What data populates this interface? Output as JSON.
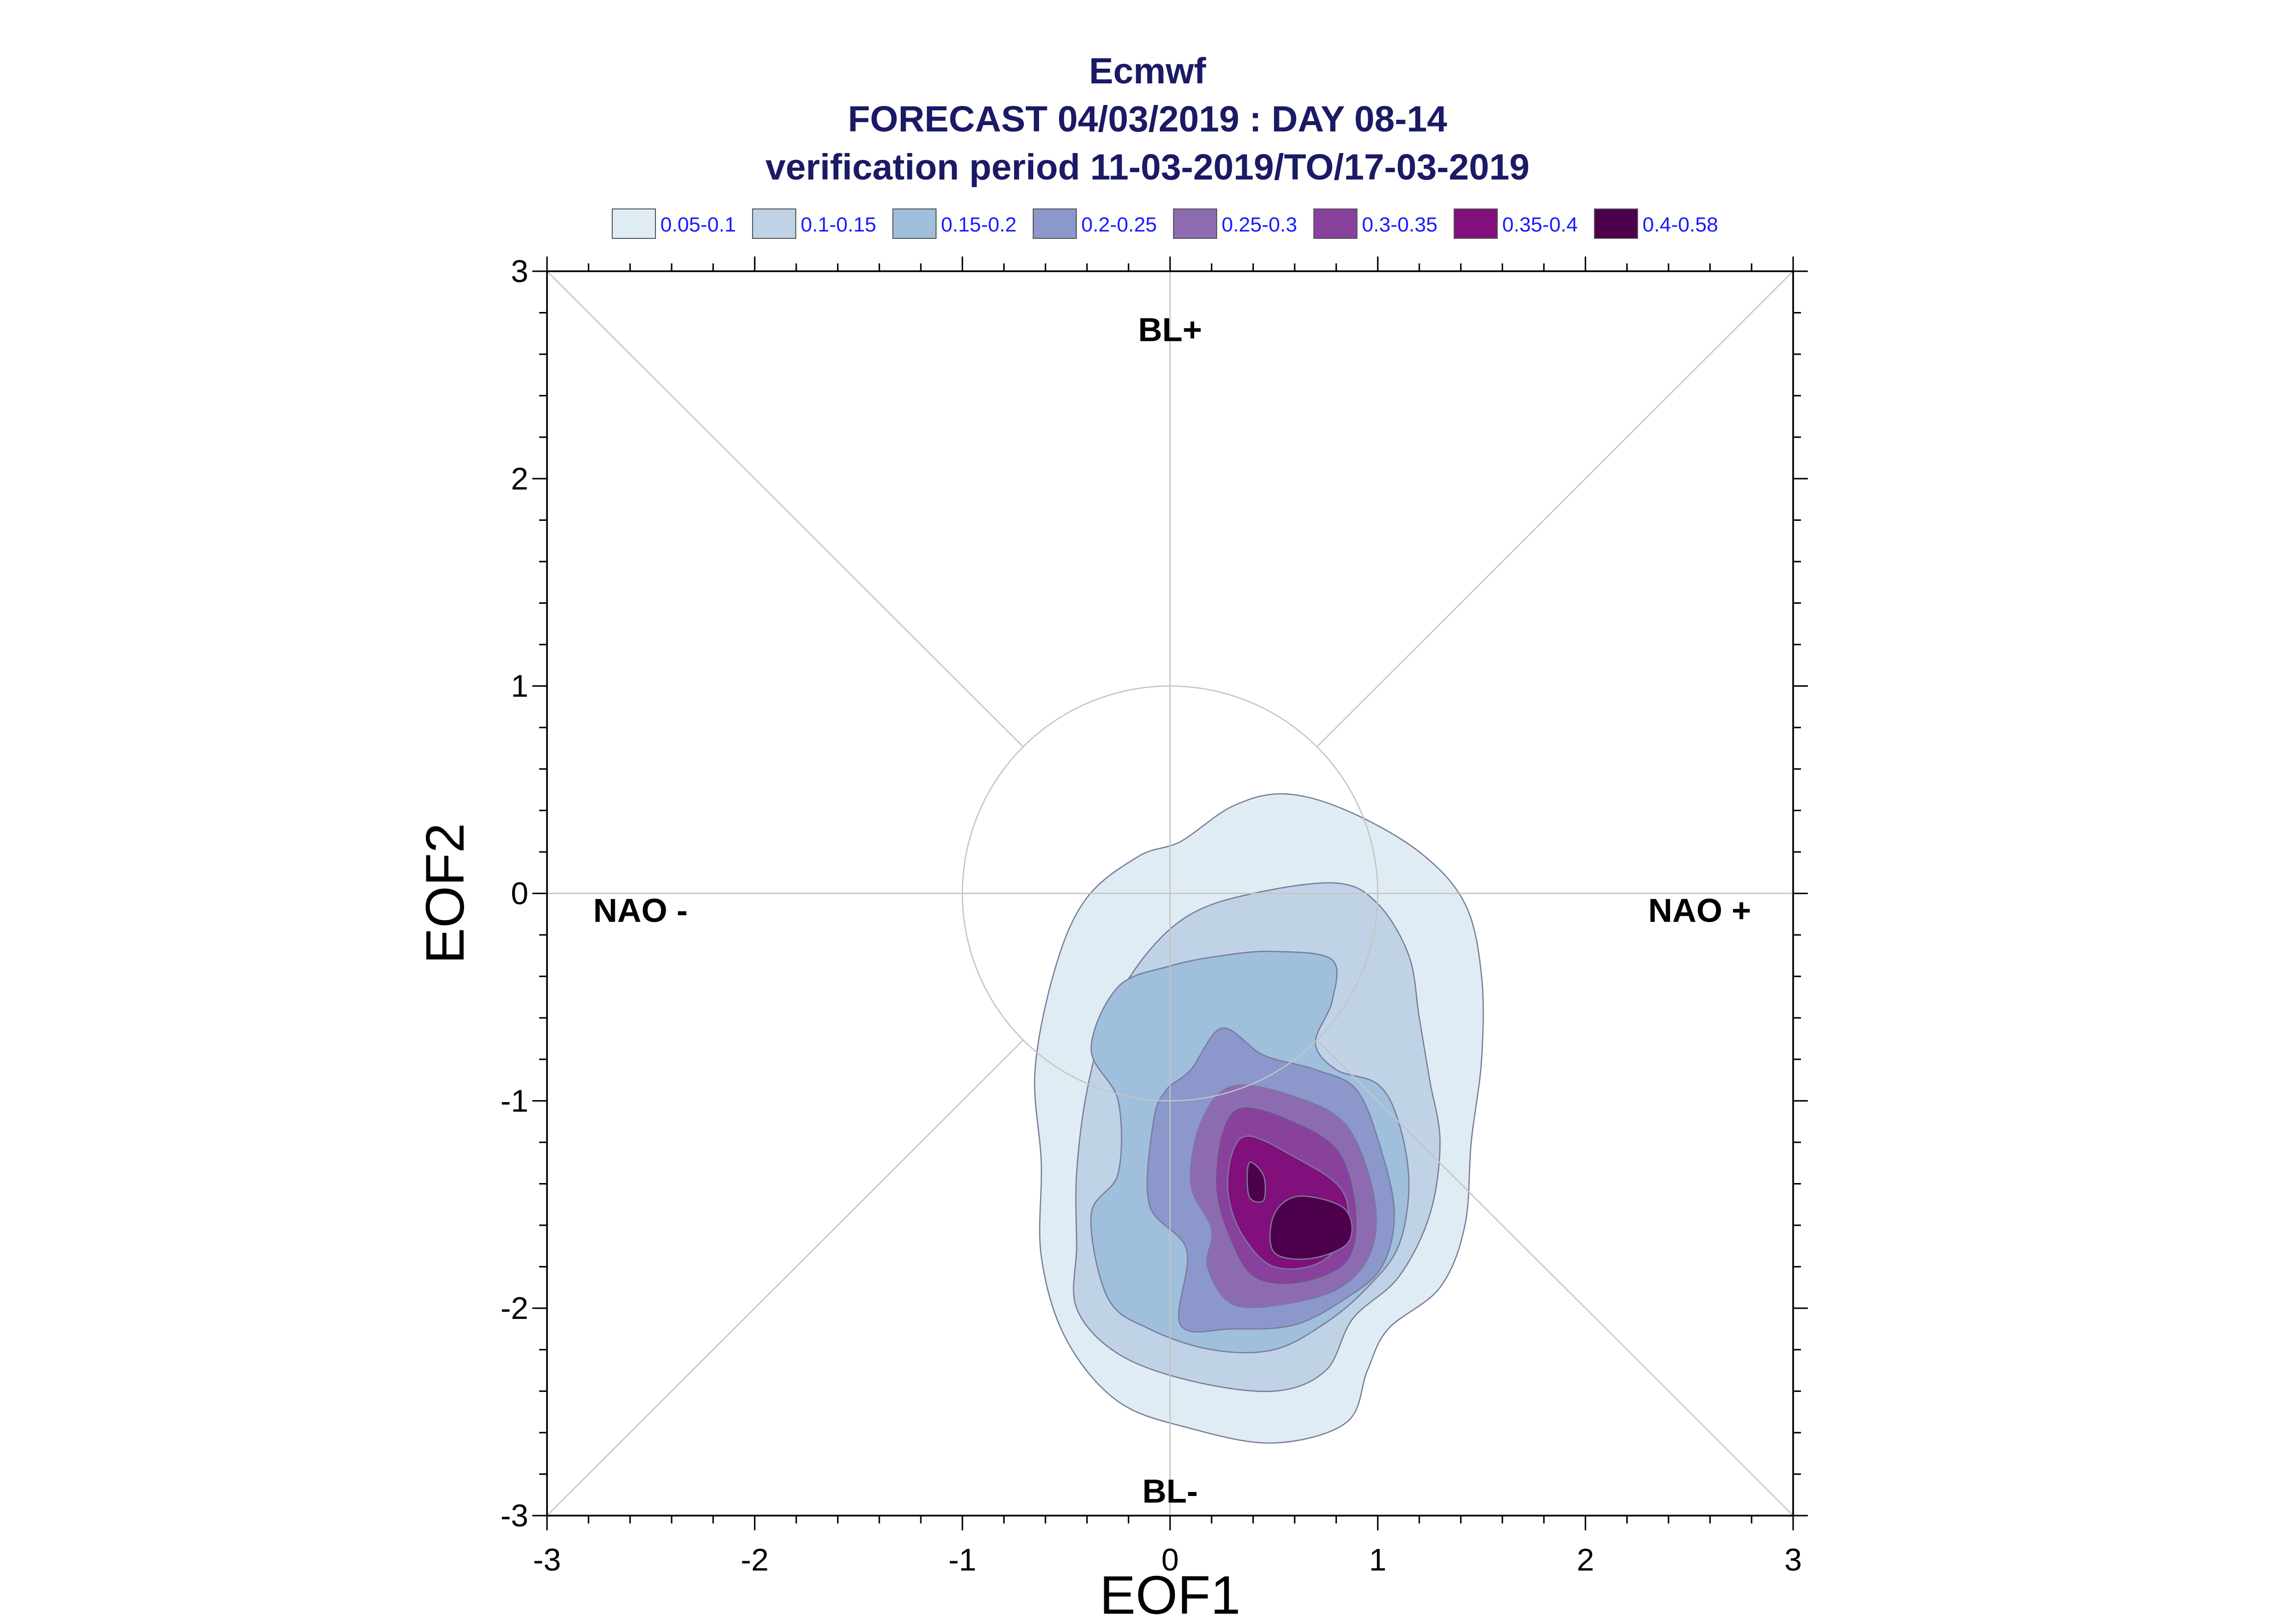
{
  "chart_data": {
    "type": "contour",
    "title_lines": [
      "Ecmwf",
      "FORECAST 04/03/2019 : DAY 08-14",
      "verification period 11-03-2019/TO/17-03-2019"
    ],
    "xlabel": "EOF1",
    "ylabel": "EOF2",
    "xlim": [
      -3,
      3
    ],
    "ylim": [
      -3,
      3
    ],
    "xticks": [
      "-3",
      "-2",
      "-1",
      "0",
      "1",
      "2",
      "3"
    ],
    "yticks": [
      "-3",
      "-2",
      "-1",
      "0",
      "1",
      "2",
      "3"
    ],
    "reference_circle_radius": 1,
    "regime_labels": [
      {
        "text": "BL+",
        "x": 0,
        "y": 2.72
      },
      {
        "text": "BL-",
        "x": 0,
        "y": -2.88
      },
      {
        "text": "NAO -",
        "x": -2.55,
        "y": -0.08
      },
      {
        "text": "NAO +",
        "x": 2.55,
        "y": -0.08
      }
    ],
    "legend": [
      {
        "label": "0.05-0.1",
        "color": "#e0ecf4"
      },
      {
        "label": "0.1-0.15",
        "color": "#c0d3e6"
      },
      {
        "label": "0.15-0.2",
        "color": "#9fbfdc"
      },
      {
        "label": "0.2-0.25",
        "color": "#8c97cb"
      },
      {
        "label": "0.25-0.3",
        "color": "#8c6bb1"
      },
      {
        "label": "0.3-0.35",
        "color": "#88419d"
      },
      {
        "label": "0.35-0.4",
        "color": "#810f7c"
      },
      {
        "label": "0.4-0.58",
        "color": "#4d004b"
      }
    ],
    "levels": [
      {
        "range": "0.05-0.1",
        "points": [
          [
            0.55,
            0.48
          ],
          [
            0.85,
            0.4
          ],
          [
            1.2,
            0.2
          ],
          [
            1.42,
            -0.05
          ],
          [
            1.5,
            -0.4
          ],
          [
            1.5,
            -0.8
          ],
          [
            1.45,
            -1.2
          ],
          [
            1.42,
            -1.6
          ],
          [
            1.3,
            -1.9
          ],
          [
            1.05,
            -2.1
          ],
          [
            0.95,
            -2.3
          ],
          [
            0.85,
            -2.55
          ],
          [
            0.5,
            -2.65
          ],
          [
            0.1,
            -2.58
          ],
          [
            -0.25,
            -2.45
          ],
          [
            -0.5,
            -2.15
          ],
          [
            -0.62,
            -1.75
          ],
          [
            -0.62,
            -1.3
          ],
          [
            -0.65,
            -0.85
          ],
          [
            -0.55,
            -0.35
          ],
          [
            -0.4,
            -0.02
          ],
          [
            -0.15,
            0.18
          ],
          [
            0.05,
            0.25
          ],
          [
            0.3,
            0.42
          ]
        ]
      },
      {
        "range": "0.1-0.15",
        "points": [
          [
            0.8,
            0.05
          ],
          [
            1.0,
            -0.05
          ],
          [
            1.15,
            -0.3
          ],
          [
            1.2,
            -0.6
          ],
          [
            1.25,
            -0.9
          ],
          [
            1.3,
            -1.2
          ],
          [
            1.25,
            -1.55
          ],
          [
            1.1,
            -1.85
          ],
          [
            0.88,
            -2.05
          ],
          [
            0.75,
            -2.3
          ],
          [
            0.5,
            -2.4
          ],
          [
            0.1,
            -2.35
          ],
          [
            -0.25,
            -2.22
          ],
          [
            -0.45,
            -2.0
          ],
          [
            -0.45,
            -1.7
          ],
          [
            -0.45,
            -1.35
          ],
          [
            -0.4,
            -0.95
          ],
          [
            -0.3,
            -0.6
          ],
          [
            -0.12,
            -0.3
          ],
          [
            0.1,
            -0.1
          ],
          [
            0.4,
            0.0
          ]
        ]
      },
      {
        "range": "0.15-0.2",
        "points": [
          [
            0.5,
            -0.28
          ],
          [
            0.78,
            -0.32
          ],
          [
            0.78,
            -0.52
          ],
          [
            0.7,
            -0.72
          ],
          [
            0.8,
            -0.85
          ],
          [
            1.0,
            -0.92
          ],
          [
            1.1,
            -1.1
          ],
          [
            1.15,
            -1.4
          ],
          [
            1.1,
            -1.7
          ],
          [
            0.95,
            -1.9
          ],
          [
            0.75,
            -2.07
          ],
          [
            0.5,
            -2.2
          ],
          [
            0.2,
            -2.2
          ],
          [
            -0.1,
            -2.1
          ],
          [
            -0.3,
            -1.95
          ],
          [
            -0.38,
            -1.55
          ],
          [
            -0.25,
            -1.35
          ],
          [
            -0.25,
            -1.0
          ],
          [
            -0.38,
            -0.75
          ],
          [
            -0.25,
            -0.45
          ],
          [
            0.0,
            -0.35
          ],
          [
            0.25,
            -0.3
          ]
        ]
      },
      {
        "range": "0.2-0.25",
        "points": [
          [
            0.25,
            -0.65
          ],
          [
            0.45,
            -0.78
          ],
          [
            0.7,
            -0.85
          ],
          [
            0.9,
            -0.95
          ],
          [
            1.02,
            -1.25
          ],
          [
            1.08,
            -1.55
          ],
          [
            1.02,
            -1.8
          ],
          [
            0.85,
            -1.95
          ],
          [
            0.6,
            -2.08
          ],
          [
            0.3,
            -2.1
          ],
          [
            0.05,
            -2.08
          ],
          [
            0.08,
            -1.72
          ],
          [
            -0.1,
            -1.5
          ],
          [
            -0.08,
            -1.1
          ],
          [
            -0.02,
            -0.95
          ],
          [
            0.1,
            -0.85
          ]
        ]
      },
      {
        "range": "0.25-0.3",
        "points": [
          [
            0.3,
            -0.93
          ],
          [
            0.6,
            -0.98
          ],
          [
            0.85,
            -1.12
          ],
          [
            0.98,
            -1.45
          ],
          [
            0.97,
            -1.72
          ],
          [
            0.82,
            -1.9
          ],
          [
            0.55,
            -1.98
          ],
          [
            0.3,
            -1.98
          ],
          [
            0.18,
            -1.8
          ],
          [
            0.2,
            -1.62
          ],
          [
            0.1,
            -1.4
          ],
          [
            0.15,
            -1.1
          ]
        ]
      },
      {
        "range": "0.3-0.35",
        "points": [
          [
            0.35,
            -1.03
          ],
          [
            0.6,
            -1.1
          ],
          [
            0.82,
            -1.25
          ],
          [
            0.9,
            -1.55
          ],
          [
            0.85,
            -1.78
          ],
          [
            0.62,
            -1.88
          ],
          [
            0.4,
            -1.85
          ],
          [
            0.28,
            -1.65
          ],
          [
            0.22,
            -1.42
          ],
          [
            0.25,
            -1.15
          ]
        ]
      },
      {
        "range": "0.35-0.4",
        "points": [
          [
            0.38,
            -1.17
          ],
          [
            0.58,
            -1.26
          ],
          [
            0.82,
            -1.42
          ],
          [
            0.85,
            -1.62
          ],
          [
            0.72,
            -1.78
          ],
          [
            0.5,
            -1.8
          ],
          [
            0.35,
            -1.65
          ],
          [
            0.28,
            -1.45
          ],
          [
            0.3,
            -1.25
          ]
        ]
      },
      {
        "range": "0.4-0.58",
        "points": [
          [
            0.62,
            -1.46
          ],
          [
            0.84,
            -1.52
          ],
          [
            0.86,
            -1.68
          ],
          [
            0.68,
            -1.76
          ],
          [
            0.5,
            -1.73
          ],
          [
            0.5,
            -1.55
          ]
        ]
      },
      {
        "range": "0.4-0.58",
        "points": [
          [
            0.38,
            -1.3
          ],
          [
            0.45,
            -1.36
          ],
          [
            0.45,
            -1.48
          ],
          [
            0.38,
            -1.46
          ]
        ]
      }
    ]
  }
}
